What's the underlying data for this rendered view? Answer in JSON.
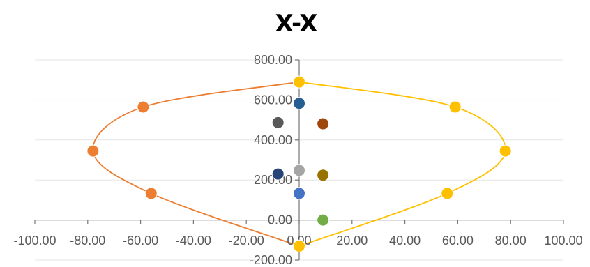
{
  "chart_data": {
    "type": "scatter",
    "title": "X-X",
    "xlabel": "",
    "ylabel": "",
    "xlim": [
      -100,
      100
    ],
    "ylim": [
      -200,
      800
    ],
    "x_ticks": [
      "-100.00",
      "-80.00",
      "-60.00",
      "-40.00",
      "-20.00",
      "0.00",
      "20.00",
      "40.00",
      "60.00",
      "80.00",
      "100.00"
    ],
    "y_ticks": [
      "-200.00",
      "0.00",
      "200.00",
      "400.00",
      "600.00",
      "800.00"
    ],
    "grid": true,
    "legend": "none",
    "series": [
      {
        "color": "#ED7D31",
        "line": "smooth",
        "points": [
          [
            0,
            690
          ],
          [
            -59,
            565
          ],
          [
            -78,
            345
          ],
          [
            -56,
            133
          ],
          [
            0,
            -130
          ]
        ]
      },
      {
        "color": "#FFC000",
        "line": "smooth",
        "points": [
          [
            0,
            690
          ],
          [
            59,
            565
          ],
          [
            78,
            345
          ],
          [
            56,
            133
          ],
          [
            0,
            -130
          ]
        ]
      },
      {
        "color": "#255E91",
        "line": "none",
        "points": [
          [
            0,
            583
          ]
        ]
      },
      {
        "color": "#595959",
        "line": "none",
        "points": [
          [
            -8,
            487
          ]
        ]
      },
      {
        "color": "#9E480E",
        "line": "none",
        "points": [
          [
            9,
            481
          ]
        ]
      },
      {
        "color": "#A5A5A5",
        "line": "none",
        "points": [
          [
            0,
            248
          ]
        ]
      },
      {
        "color": "#264478",
        "line": "none",
        "points": [
          [
            -8,
            230
          ]
        ]
      },
      {
        "color": "#997300",
        "line": "none",
        "points": [
          [
            9,
            224
          ]
        ]
      },
      {
        "color": "#4472C4",
        "line": "none",
        "points": [
          [
            0,
            133
          ]
        ]
      },
      {
        "color": "#70AD47",
        "line": "none",
        "points": [
          [
            9,
            0
          ]
        ]
      }
    ]
  }
}
